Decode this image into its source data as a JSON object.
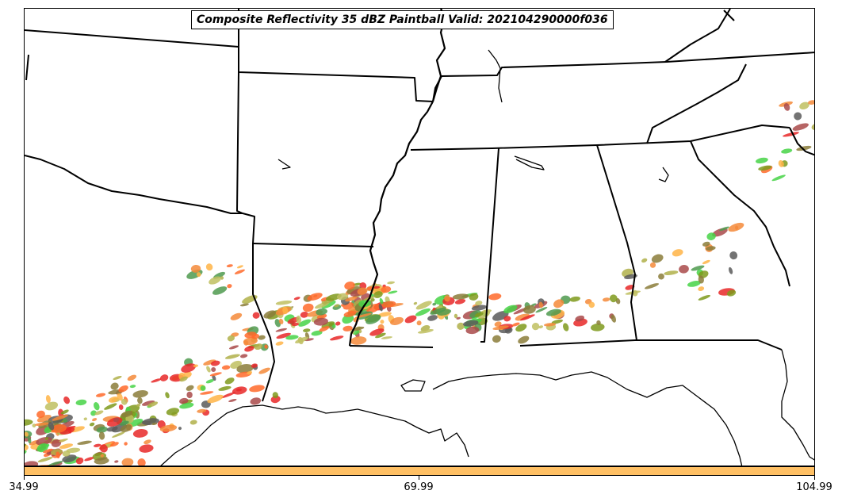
{
  "title": "Composite Reflectivity 35 dBZ Paintball Valid: 202104290000f036",
  "colorbar": {
    "color": "#ffc064",
    "ticks": [
      "34.99",
      "69.99",
      "104.99"
    ]
  },
  "member_colors": [
    "#a94a4a",
    "#f58a3a",
    "#e82828",
    "#7f9a1c",
    "#4f9a4f",
    "#47d447",
    "#b0b04a",
    "#5a5a5a",
    "#ffb447",
    "#8b7d3a",
    "#ff6a2a",
    "#c0c060"
  ]
}
